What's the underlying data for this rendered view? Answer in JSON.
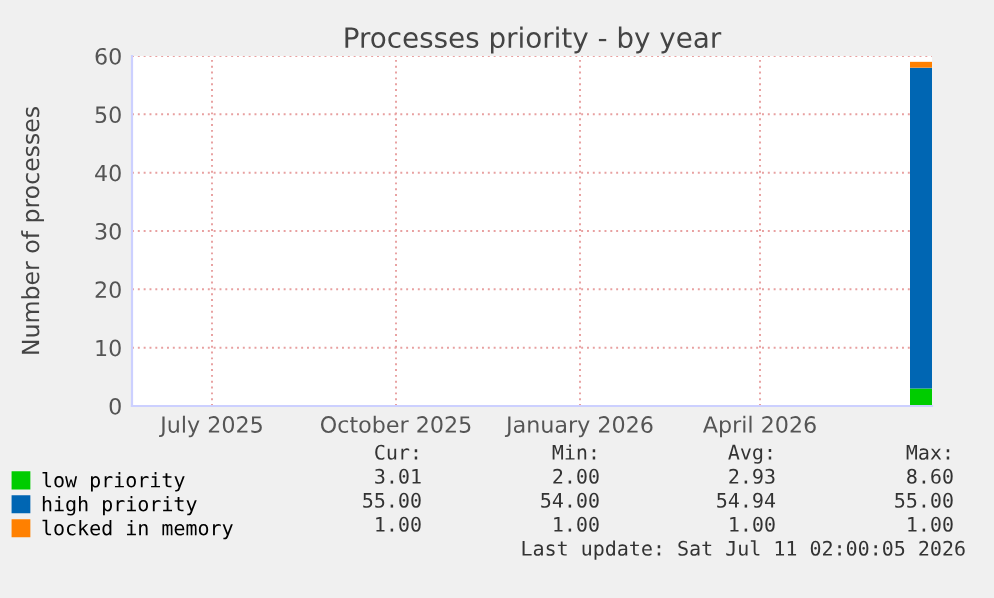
{
  "chart_data": {
    "type": "area",
    "stacked": true,
    "title": "Processes priority - by year",
    "ylabel": "Number of processes",
    "x": [
      "2026-06-30",
      "2026-07-11"
    ],
    "series": [
      {
        "name": "low priority",
        "color": "#00cc00",
        "values": [
          3,
          3
        ]
      },
      {
        "name": "high priority",
        "color": "#0066b3",
        "values": [
          55,
          55
        ]
      },
      {
        "name": "locked in memory",
        "color": "#ff8000",
        "values": [
          1,
          1
        ]
      }
    ],
    "xlim": [
      "2025-06-06",
      "2026-07-11"
    ],
    "xticks": [
      {
        "value": "2025-07-16",
        "label": "July 2025"
      },
      {
        "value": "2025-10-16",
        "label": "October 2025"
      },
      {
        "value": "2026-01-16",
        "label": "January 2026"
      },
      {
        "value": "2026-04-16",
        "label": "April 2026"
      }
    ],
    "ylim": [
      0,
      60
    ],
    "yticks": [
      0,
      10,
      20,
      30,
      40,
      50,
      60
    ],
    "grid": true,
    "legend": "bottom",
    "annotations": [
      "Cur:",
      "Min:",
      "Avg:",
      "Max:",
      "3.01",
      "2.00",
      "2.93",
      "8.60",
      "55.00",
      "54.00",
      "54.94",
      "55.00",
      "1.00",
      "1.00",
      "1.00",
      "1.00",
      "Last update: Sat Jul 11 02:00:05 2026"
    ]
  }
}
